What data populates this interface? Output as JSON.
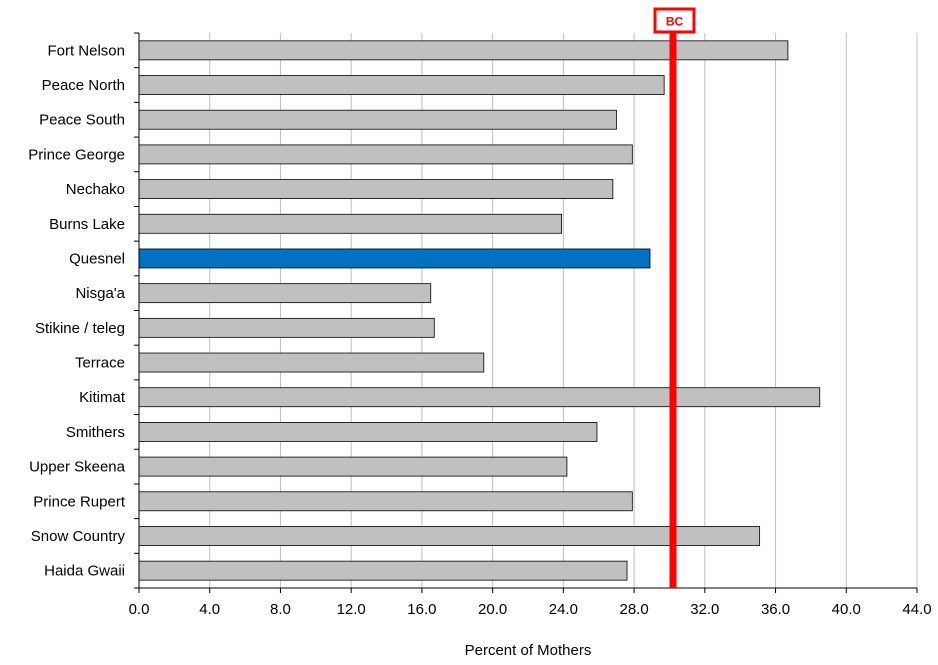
{
  "chart_data": {
    "type": "bar",
    "orientation": "horizontal",
    "categories": [
      "Fort Nelson",
      "Peace North",
      "Peace South",
      "Prince George",
      "Nechako",
      "Burns Lake",
      "Quesnel",
      "Nisga'a",
      "Stikine / teleg",
      "Terrace",
      "Kitimat",
      "Smithers",
      "Upper Skeena",
      "Prince Rupert",
      "Snow Country",
      "Haida Gwaii"
    ],
    "values": [
      36.7,
      29.7,
      27.0,
      27.9,
      26.8,
      23.9,
      28.9,
      16.5,
      16.7,
      19.5,
      38.5,
      25.9,
      24.2,
      27.9,
      35.1,
      27.6
    ],
    "highlight_category": "Quesnel",
    "reference_line": {
      "label": "BC",
      "value": 30.2,
      "color": "#ff0000"
    },
    "xlabel": "Percent of Mothers",
    "ylabel": "",
    "xlim": [
      0,
      44
    ],
    "x_ticks": [
      "0.0",
      "4.0",
      "8.0",
      "12.0",
      "16.0",
      "20.0",
      "24.0",
      "28.0",
      "32.0",
      "36.0",
      "40.0",
      "44.0"
    ],
    "grid": "vertical",
    "colors": {
      "bar": "#c0c0c0",
      "highlight": "#0070c0",
      "grid": "#c0c0c0",
      "bar_edge": "#000000"
    }
  }
}
